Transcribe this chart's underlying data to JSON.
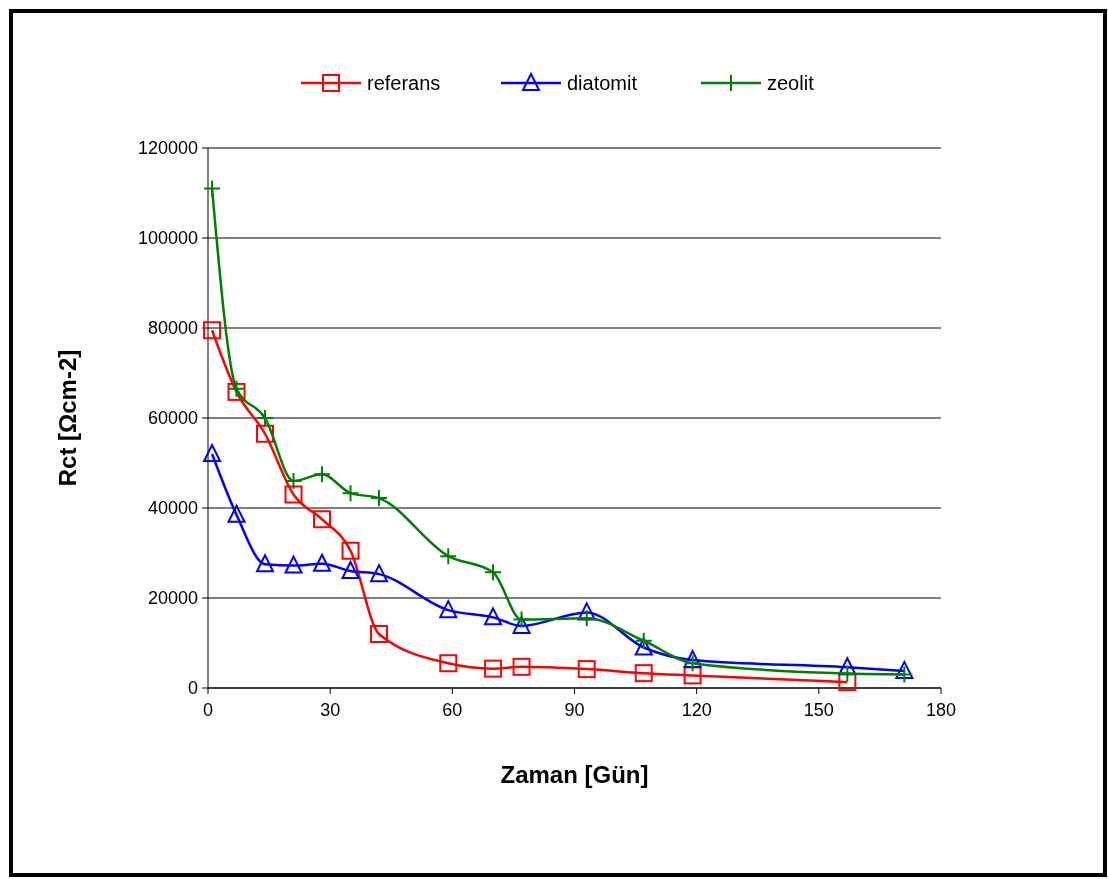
{
  "chart_data": {
    "type": "line",
    "xlabel": "Zaman  [Gün]",
    "ylabel": "Rct [Ωcm-2]",
    "xlim": [
      0,
      180
    ],
    "xticks": [
      0,
      30,
      60,
      90,
      120,
      150,
      180
    ],
    "ylim": [
      0,
      120000
    ],
    "yticks": [
      0,
      20000,
      40000,
      60000,
      80000,
      100000,
      120000
    ],
    "grid": "y",
    "legend": "top",
    "series": [
      {
        "name": "referans",
        "color": "#ff0000",
        "marker": "square",
        "x": [
          1,
          7,
          14,
          21,
          28,
          35,
          42,
          59,
          70,
          77,
          93,
          107,
          119,
          157
        ],
        "values": [
          79500,
          65800,
          56500,
          43000,
          37500,
          30500,
          12000,
          5500,
          4300,
          4700,
          4200,
          3300,
          2800,
          1300
        ]
      },
      {
        "name": "diatomit",
        "color": "#0000ff",
        "marker": "triangle",
        "x": [
          1,
          7,
          14,
          21,
          28,
          35,
          42,
          59,
          70,
          77,
          93,
          107,
          119,
          157,
          171
        ],
        "values": [
          52000,
          38500,
          27500,
          27200,
          27600,
          26000,
          25300,
          17300,
          15700,
          13800,
          16800,
          9000,
          6200,
          4600,
          3800
        ]
      },
      {
        "name": "zeolit",
        "color": "#008000",
        "marker": "cross",
        "x": [
          1,
          7,
          14,
          21,
          28,
          35,
          42,
          59,
          70,
          77,
          93,
          107,
          119,
          157,
          171
        ],
        "values": [
          111000,
          66500,
          60000,
          46000,
          47500,
          43300,
          42200,
          29300,
          25700,
          15200,
          15500,
          10500,
          5500,
          3200,
          3000
        ]
      }
    ]
  }
}
